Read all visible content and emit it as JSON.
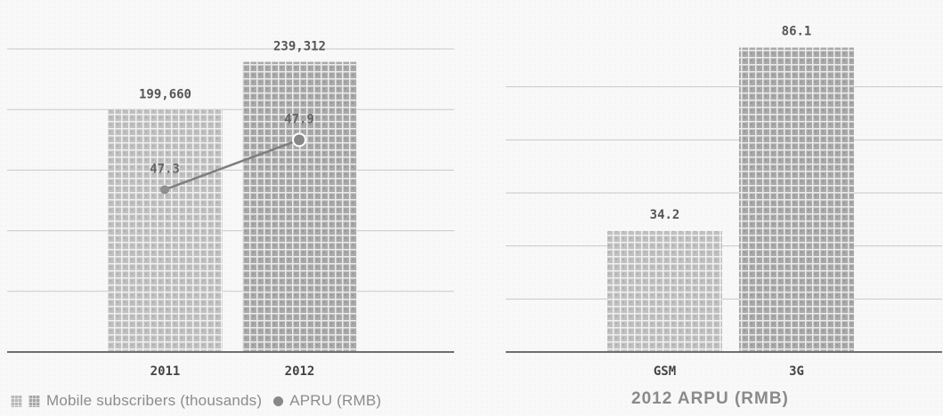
{
  "chart_data": [
    {
      "type": "bar",
      "categories": [
        "2011",
        "2012"
      ],
      "series": [
        {
          "name": "Mobile subscribers (thousands)",
          "values": [
            199660,
            239312
          ],
          "value_labels": [
            "199,660",
            "239,312"
          ]
        },
        {
          "name": "APRU (RMB)",
          "type": "line",
          "values": [
            47.3,
            47.9
          ],
          "value_labels": [
            "47.3",
            "47.9"
          ]
        }
      ],
      "title": "",
      "xlabel": "",
      "ylabel": "",
      "ylim": [
        0,
        250000
      ],
      "grid": true,
      "legend": "bottom-left"
    },
    {
      "type": "bar",
      "categories": [
        "GSM",
        "3G"
      ],
      "values": [
        34.2,
        86.1
      ],
      "value_labels": [
        "34.2",
        "86.1"
      ],
      "title": "2012 ARPU (RMB)",
      "xlabel": "",
      "ylabel": "",
      "ylim": [
        0,
        90
      ],
      "grid": true
    }
  ],
  "legend": {
    "subscribers_label": "Mobile subscribers (thousands)",
    "arpu_label": "APRU (RMB)"
  },
  "right_chart": {
    "title": "2012 ARPU (RMB)"
  },
  "colors": {
    "light_bar": "#b9b9b9",
    "dark_bar": "#a6a6a6",
    "line": "#7f7f7f",
    "axis": "#6e6e6e"
  }
}
